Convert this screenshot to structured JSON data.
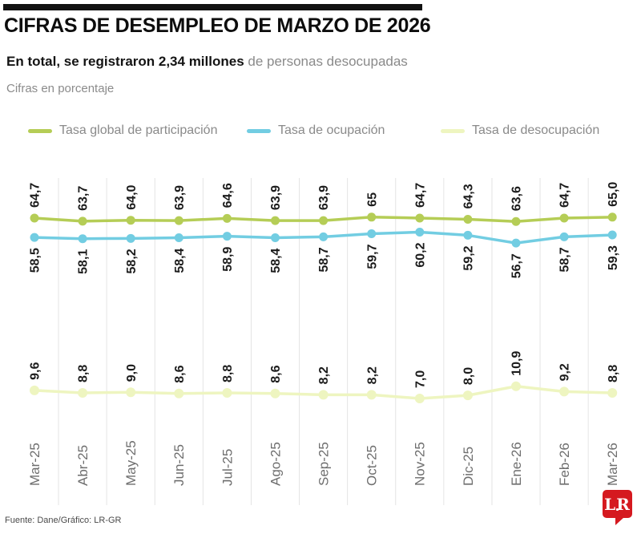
{
  "header": {
    "title": "CIFRAS DE DESEMPLEO DE MARZO DE 2026",
    "subtitle_bold": "En total, se registraron 2,34 millones",
    "subtitle_rest": " de personas desocupadas",
    "note": "Cifras en porcentaje"
  },
  "legend": [
    {
      "label": "Tasa global de participación",
      "color": "#b5cd56"
    },
    {
      "label": "Tasa de ocupación",
      "color": "#72cde2"
    },
    {
      "label": "Tasa de desocupación",
      "color": "#eef5c0"
    }
  ],
  "chart_data": {
    "type": "line",
    "title": "Cifras de desempleo de marzo de 2026",
    "unit": "porcentaje",
    "categories": [
      "Mar-25",
      "Abr-25",
      "May-25",
      "Jun-25",
      "Jul-25",
      "Ago-25",
      "Sep-25",
      "Oct-25",
      "Nov-25",
      "Dic-25",
      "Ene-26",
      "Feb-26",
      "Mar-26"
    ],
    "series": [
      {
        "name": "Tasa global de participación",
        "color": "#b5cd56",
        "values": [
          64.7,
          63.7,
          64.0,
          63.9,
          64.6,
          63.9,
          63.9,
          65,
          64.7,
          64.3,
          63.6,
          64.7,
          65.0
        ],
        "labels": [
          "64,7",
          "63,7",
          "64,0",
          "63,9",
          "64,6",
          "63,9",
          "63,9",
          "65",
          "64,7",
          "64,3",
          "63,6",
          "64,7",
          "65,0"
        ],
        "label_position": "above"
      },
      {
        "name": "Tasa de ocupación",
        "color": "#72cde2",
        "values": [
          58.5,
          58.1,
          58.2,
          58.4,
          58.9,
          58.4,
          58.7,
          59.7,
          60.2,
          59.2,
          56.7,
          58.7,
          59.3
        ],
        "labels": [
          "58,5",
          "58,1",
          "58,2",
          "58,4",
          "58,9",
          "58,4",
          "58,7",
          "59,7",
          "60,2",
          "59,2",
          "56,7",
          "58,7",
          "59,3"
        ],
        "label_position": "below"
      },
      {
        "name": "Tasa de desocupación",
        "color": "#eef5c0",
        "values": [
          9.6,
          8.8,
          9.0,
          8.6,
          8.8,
          8.6,
          8.2,
          8.2,
          7.0,
          8.0,
          10.9,
          9.2,
          8.8
        ],
        "labels": [
          "9,6",
          "8,8",
          "9,0",
          "8,6",
          "8,8",
          "8,6",
          "8,2",
          "8,2",
          "7,0",
          "8,0",
          "10,9",
          "9,2",
          "8,8"
        ],
        "label_position": "above"
      }
    ],
    "grid": "vertical-only",
    "x_tick_rotation": -90,
    "data_label_rotation": -90,
    "legend_position": "top"
  },
  "footer": {
    "source": "Fuente: Dane/Gráfico: LR-GR",
    "logo_text": "LR",
    "logo_color": "#d5191f"
  }
}
